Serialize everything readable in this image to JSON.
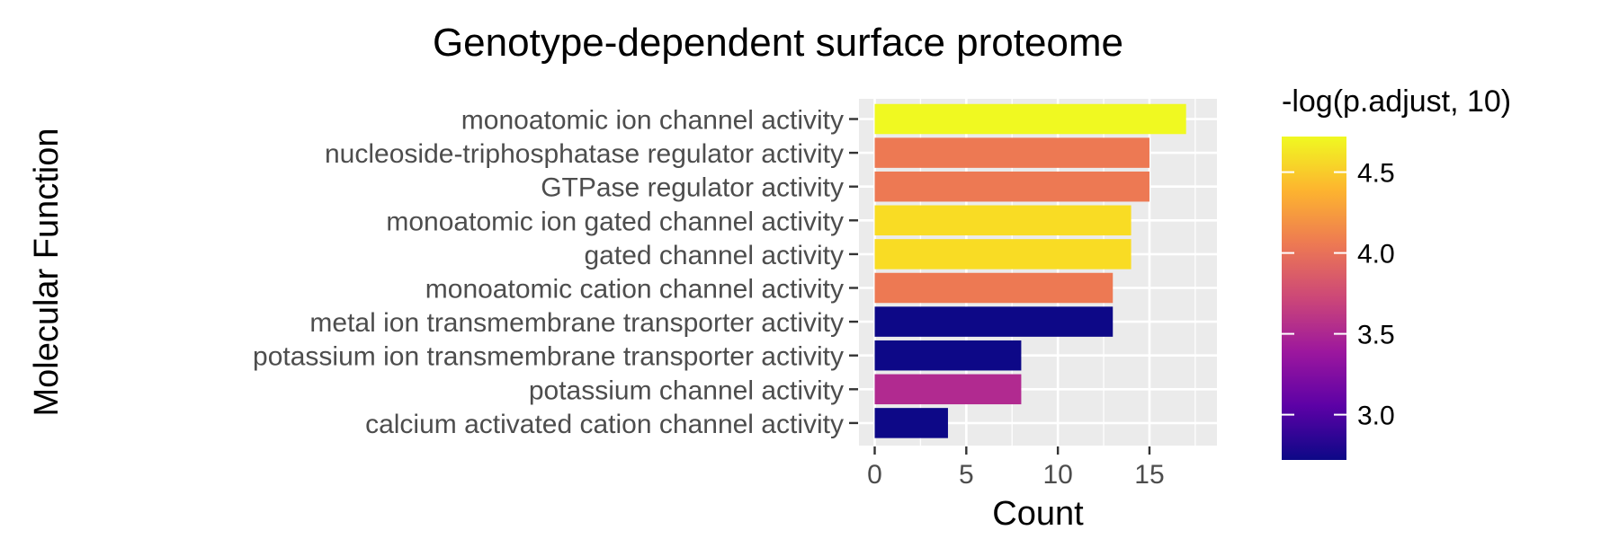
{
  "chart_data": {
    "type": "bar",
    "orientation": "horizontal",
    "title": "Genotype-dependent surface proteome",
    "xlabel": "Count",
    "ylabel": "Molecular Function",
    "xlim": [
      0,
      17.85
    ],
    "xticks": [
      0,
      5,
      10,
      15
    ],
    "grid": true,
    "categories": [
      "monoatomic ion channel activity",
      "nucleoside-triphosphatase regulator activity",
      "GTPase regulator activity",
      "monoatomic ion gated channel activity",
      "gated channel activity",
      "monoatomic cation channel activity",
      "metal ion transmembrane transporter activity",
      "potassium ion transmembrane transporter activity",
      "potassium channel activity",
      "calcium activated cation channel activity"
    ],
    "values": [
      17,
      15,
      15,
      14,
      14,
      13,
      13,
      8,
      8,
      4
    ],
    "color_values": [
      4.65,
      4.12,
      4.12,
      4.57,
      4.57,
      4.12,
      2.78,
      2.78,
      3.45,
      2.78
    ],
    "bar_colors": [
      "#F0F921",
      "#ED7953",
      "#ED7953",
      "#F9DC24",
      "#F9DC24",
      "#ED7953",
      "#0D0887",
      "#0D0887",
      "#B12A90",
      "#0D0887"
    ],
    "legend": {
      "title": "-log(p.adjust, 10)",
      "placement": "right",
      "ticks": [
        "3.0",
        "3.5",
        "4.0",
        "4.5"
      ],
      "tick_values": [
        3.0,
        3.5,
        4.0,
        4.5
      ],
      "range": [
        2.72,
        4.72
      ],
      "colormap": [
        "#0D0887",
        "#5C01A6",
        "#9C179E",
        "#CC4778",
        "#ED7953",
        "#FDB42F",
        "#F0F921"
      ]
    },
    "panel_background": "#EBEBEB",
    "grid_color": "#FFFFFF"
  }
}
